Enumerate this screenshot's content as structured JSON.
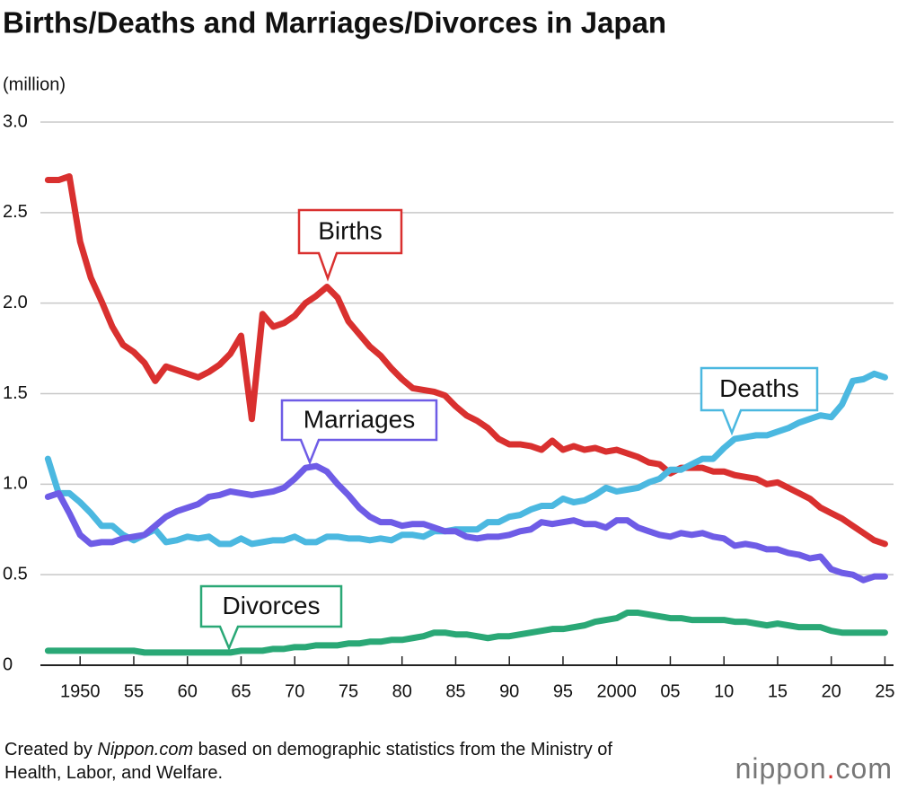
{
  "chart_data": {
    "type": "line",
    "title": "Births/Deaths and Marriages/Divorces in Japan",
    "y_unit": "(million)",
    "x": [
      1947,
      1948,
      1949,
      1950,
      1951,
      1952,
      1953,
      1954,
      1955,
      1956,
      1957,
      1958,
      1959,
      1960,
      1961,
      1962,
      1963,
      1964,
      1965,
      1966,
      1967,
      1968,
      1969,
      1970,
      1971,
      1972,
      1973,
      1974,
      1975,
      1976,
      1977,
      1978,
      1979,
      1980,
      1981,
      1982,
      1983,
      1984,
      1985,
      1986,
      1987,
      1988,
      1989,
      1990,
      1991,
      1992,
      1993,
      1994,
      1995,
      1996,
      1997,
      1998,
      1999,
      2000,
      2001,
      2002,
      2003,
      2004,
      2005,
      2006,
      2007,
      2008,
      2009,
      2010,
      2011,
      2012,
      2013,
      2014,
      2015,
      2016,
      2017,
      2018,
      2019,
      2020,
      2021,
      2022,
      2023,
      2024,
      2025
    ],
    "series": [
      {
        "name": "Births",
        "color": "#d9302f",
        "values": [
          2.68,
          2.68,
          2.7,
          2.34,
          2.14,
          2.01,
          1.87,
          1.77,
          1.73,
          1.67,
          1.57,
          1.65,
          1.63,
          1.61,
          1.59,
          1.62,
          1.66,
          1.72,
          1.82,
          1.36,
          1.94,
          1.87,
          1.89,
          1.93,
          2.0,
          2.04,
          2.09,
          2.03,
          1.9,
          1.83,
          1.76,
          1.71,
          1.64,
          1.58,
          1.53,
          1.52,
          1.51,
          1.49,
          1.43,
          1.38,
          1.35,
          1.31,
          1.25,
          1.22,
          1.22,
          1.21,
          1.19,
          1.24,
          1.19,
          1.21,
          1.19,
          1.2,
          1.18,
          1.19,
          1.17,
          1.15,
          1.12,
          1.11,
          1.06,
          1.09,
          1.09,
          1.09,
          1.07,
          1.07,
          1.05,
          1.04,
          1.03,
          1.0,
          1.01,
          0.98,
          0.95,
          0.92,
          0.87,
          0.84,
          0.81,
          0.77,
          0.73,
          0.69,
          0.67
        ]
      },
      {
        "name": "Deaths",
        "color": "#4bb8e0",
        "values": [
          1.14,
          0.95,
          0.95,
          0.9,
          0.84,
          0.77,
          0.77,
          0.72,
          0.69,
          0.72,
          0.75,
          0.68,
          0.69,
          0.71,
          0.7,
          0.71,
          0.67,
          0.67,
          0.7,
          0.67,
          0.68,
          0.69,
          0.69,
          0.71,
          0.68,
          0.68,
          0.71,
          0.71,
          0.7,
          0.7,
          0.69,
          0.7,
          0.69,
          0.72,
          0.72,
          0.71,
          0.74,
          0.74,
          0.75,
          0.75,
          0.75,
          0.79,
          0.79,
          0.82,
          0.83,
          0.86,
          0.88,
          0.88,
          0.92,
          0.9,
          0.91,
          0.94,
          0.98,
          0.96,
          0.97,
          0.98,
          1.01,
          1.03,
          1.08,
          1.08,
          1.11,
          1.14,
          1.14,
          1.2,
          1.25,
          1.26,
          1.27,
          1.27,
          1.29,
          1.31,
          1.34,
          1.36,
          1.38,
          1.37,
          1.44,
          1.57,
          1.58,
          1.61,
          1.59
        ]
      },
      {
        "name": "Marriages",
        "color": "#6e5ce6",
        "values": [
          0.93,
          0.95,
          0.84,
          0.72,
          0.67,
          0.68,
          0.68,
          0.7,
          0.71,
          0.72,
          0.77,
          0.82,
          0.85,
          0.87,
          0.89,
          0.93,
          0.94,
          0.96,
          0.95,
          0.94,
          0.95,
          0.96,
          0.98,
          1.03,
          1.09,
          1.1,
          1.07,
          1.0,
          0.94,
          0.87,
          0.82,
          0.79,
          0.79,
          0.77,
          0.78,
          0.78,
          0.76,
          0.74,
          0.74,
          0.71,
          0.7,
          0.71,
          0.71,
          0.72,
          0.74,
          0.75,
          0.79,
          0.78,
          0.79,
          0.8,
          0.78,
          0.78,
          0.76,
          0.8,
          0.8,
          0.76,
          0.74,
          0.72,
          0.71,
          0.73,
          0.72,
          0.73,
          0.71,
          0.7,
          0.66,
          0.67,
          0.66,
          0.64,
          0.64,
          0.62,
          0.61,
          0.59,
          0.6,
          0.53,
          0.51,
          0.5,
          0.47,
          0.49,
          0.49
        ]
      },
      {
        "name": "Divorces",
        "color": "#2aa876",
        "values": [
          0.08,
          0.08,
          0.08,
          0.08,
          0.08,
          0.08,
          0.08,
          0.08,
          0.08,
          0.07,
          0.07,
          0.07,
          0.07,
          0.07,
          0.07,
          0.07,
          0.07,
          0.07,
          0.08,
          0.08,
          0.08,
          0.09,
          0.09,
          0.1,
          0.1,
          0.11,
          0.11,
          0.11,
          0.12,
          0.12,
          0.13,
          0.13,
          0.14,
          0.14,
          0.15,
          0.16,
          0.18,
          0.18,
          0.17,
          0.17,
          0.16,
          0.15,
          0.16,
          0.16,
          0.17,
          0.18,
          0.19,
          0.2,
          0.2,
          0.21,
          0.22,
          0.24,
          0.25,
          0.26,
          0.29,
          0.29,
          0.28,
          0.27,
          0.26,
          0.26,
          0.25,
          0.25,
          0.25,
          0.25,
          0.24,
          0.24,
          0.23,
          0.22,
          0.23,
          0.22,
          0.21,
          0.21,
          0.21,
          0.19,
          0.18,
          0.18,
          0.18,
          0.18,
          0.18
        ]
      }
    ],
    "xlim": [
      1946.3,
      2025.8
    ],
    "xticks": [
      {
        "value": 1950,
        "label": "1950"
      },
      {
        "value": 1955,
        "label": "55"
      },
      {
        "value": 1960,
        "label": "60"
      },
      {
        "value": 1965,
        "label": "65"
      },
      {
        "value": 1970,
        "label": "70"
      },
      {
        "value": 1975,
        "label": "75"
      },
      {
        "value": 1980,
        "label": "80"
      },
      {
        "value": 1985,
        "label": "85"
      },
      {
        "value": 1990,
        "label": "90"
      },
      {
        "value": 1995,
        "label": "95"
      },
      {
        "value": 2000,
        "label": "2000"
      },
      {
        "value": 2005,
        "label": "05"
      },
      {
        "value": 2010,
        "label": "10"
      },
      {
        "value": 2015,
        "label": "15"
      },
      {
        "value": 2020,
        "label": "20"
      },
      {
        "value": 2025,
        "label": "25"
      }
    ],
    "ylim": [
      0,
      3
    ],
    "yticks": [
      0,
      0.5,
      {
        "value": 1,
        "label": "1.0"
      },
      1.5,
      {
        "value": 2,
        "label": "2.0"
      },
      2.5,
      {
        "value": 3,
        "label": "3.0"
      }
    ],
    "grid": true,
    "note": {
      "prefix": "Created by ",
      "source": "Nippon.com",
      "suffix": " based on demographic statistics from the Ministry of Health, Labor, and Welfare."
    },
    "logo": {
      "name": "nippon",
      "dot": ".",
      "tld": "com"
    }
  }
}
